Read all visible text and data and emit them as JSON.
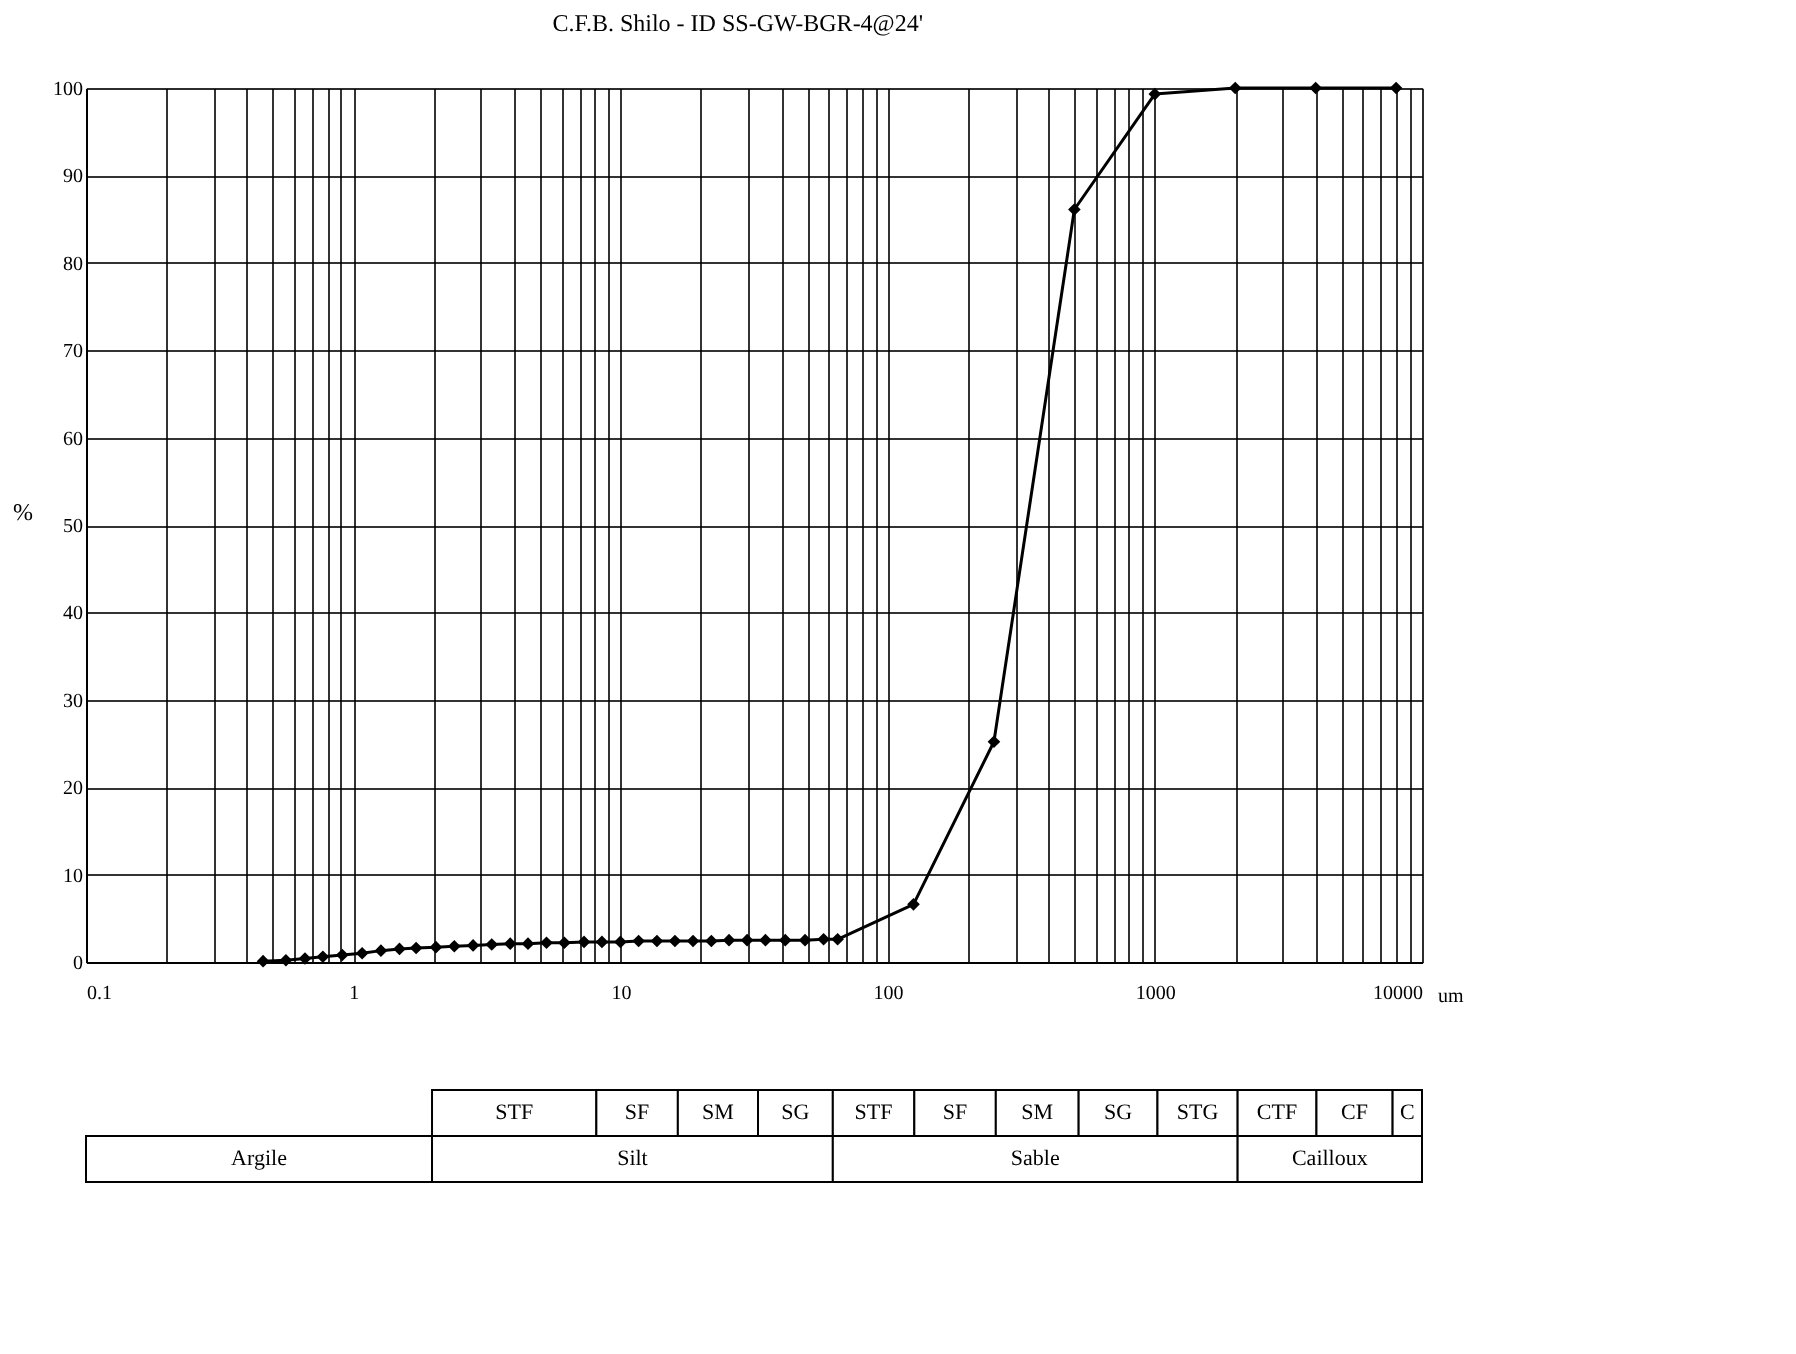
{
  "chart_data": {
    "type": "line",
    "title": "C.F.B. Shilo - ID SS-GW-BGR-4@24'",
    "xlabel": "um",
    "ylabel": "%",
    "x": [
      0.46,
      0.56,
      0.66,
      0.77,
      0.91,
      1.08,
      1.27,
      1.49,
      1.72,
      2.04,
      2.39,
      2.81,
      3.3,
      3.87,
      4.51,
      5.29,
      6.17,
      7.31,
      8.53,
      10,
      11.7,
      13.7,
      16,
      18.7,
      21.9,
      25.5,
      29.8,
      34.9,
      41.4,
      49.1,
      57.6,
      65,
      125,
      250,
      500,
      1000,
      2000,
      4000,
      8000
    ],
    "series": [
      {
        "color": "#000000",
        "values": [
          0.1,
          0.2,
          0.4,
          0.6,
          0.8,
          1.0,
          1.3,
          1.5,
          1.6,
          1.7,
          1.8,
          1.9,
          2.0,
          2.1,
          2.1,
          2.2,
          2.2,
          2.3,
          2.3,
          2.3,
          2.4,
          2.4,
          2.4,
          2.4,
          2.4,
          2.5,
          2.5,
          2.5,
          2.5,
          2.5,
          2.6,
          2.6,
          6.6,
          25.2,
          86.1,
          99.3,
          100,
          100,
          100
        ]
      }
    ],
    "log": "x",
    "grid": true,
    "marker": "diamond",
    "line_style": "solid",
    "xlim": [
      0.1,
      10000
    ],
    "ylim": [
      0,
      100
    ],
    "xticks": [
      0.1,
      {
        "value": 0.2,
        "label": null
      },
      {
        "value": 0.3,
        "label": null
      },
      {
        "value": 0.4,
        "label": null
      },
      {
        "value": 0.5,
        "label": null
      },
      {
        "value": 0.6,
        "label": null
      },
      {
        "value": 0.7,
        "label": null
      },
      {
        "value": 0.8,
        "label": null
      },
      {
        "value": 0.9,
        "label": null
      },
      1,
      {
        "value": 2,
        "label": null
      },
      {
        "value": 3,
        "label": null
      },
      {
        "value": 4,
        "label": null
      },
      {
        "value": 5,
        "label": null
      },
      {
        "value": 6,
        "label": null
      },
      {
        "value": 7,
        "label": null
      },
      {
        "value": 8,
        "label": null
      },
      {
        "value": 9,
        "label": null
      },
      10,
      {
        "value": 20,
        "label": null
      },
      {
        "value": 30,
        "label": null
      },
      {
        "value": 40,
        "label": null
      },
      {
        "value": 50,
        "label": null
      },
      {
        "value": 60,
        "label": null
      },
      {
        "value": 70,
        "label": null
      },
      {
        "value": 80,
        "label": null
      },
      {
        "value": 90,
        "label": null
      },
      100,
      {
        "value": 200,
        "label": null
      },
      {
        "value": 300,
        "label": null
      },
      {
        "value": 400,
        "label": null
      },
      {
        "value": 500,
        "label": null
      },
      {
        "value": 600,
        "label": null
      },
      {
        "value": 700,
        "label": null
      },
      {
        "value": 800,
        "label": null
      },
      {
        "value": 900,
        "label": null
      },
      1000,
      {
        "value": 2000,
        "label": null
      },
      {
        "value": 3000,
        "label": null
      },
      {
        "value": 4000,
        "label": null
      },
      {
        "value": 5000,
        "label": null
      },
      {
        "value": 6000,
        "label": null
      },
      {
        "value": 7000,
        "label": null
      },
      {
        "value": 8000,
        "label": null
      },
      {
        "value": 9000,
        "label": null
      },
      10000
    ],
    "yticks": [
      0,
      10,
      20,
      30,
      40,
      50,
      60,
      70,
      80,
      90,
      100
    ],
    "annotations": [
      "STF",
      "SF",
      "SM",
      "SG",
      "STF",
      "SF",
      "SM",
      "SG",
      "STG",
      "CTF",
      "CF",
      "C",
      "Argile",
      "Silt",
      "Sable",
      "Cailloux"
    ]
  }
}
